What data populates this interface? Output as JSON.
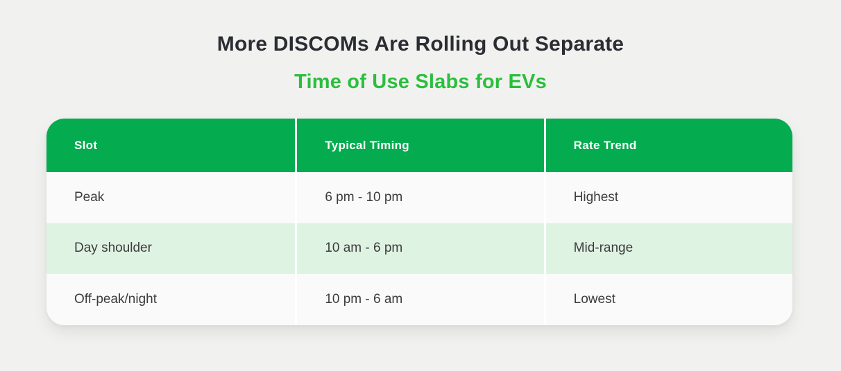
{
  "page": {
    "background": "#F1F1F0"
  },
  "header": {
    "title": "More DISCOMs Are Rolling Out Separate",
    "subtitle": "Time of Use Slabs for EVs",
    "title_color": "#2B2D33",
    "subtitle_color": "#2BBE3D"
  },
  "table": {
    "header_bg": "#04AB4F",
    "header_text_color": "#FFFFFF",
    "row_bg": "#FAFAFA",
    "row_highlight_bg": "#DFF3E2",
    "columns": [
      "Slot",
      "Typical Timing",
      "Rate Trend"
    ],
    "rows": [
      {
        "slot": "Peak",
        "timing": "6 pm - 10 pm",
        "trend": "Highest"
      },
      {
        "slot": "Day shoulder",
        "timing": "10 am - 6 pm",
        "trend": "Mid-range"
      },
      {
        "slot": "Off-peak/night",
        "timing": "10 pm - 6 am",
        "trend": "Lowest"
      }
    ]
  },
  "chart_data": {
    "type": "table",
    "title": "More DISCOMs Are Rolling Out Separate Time of Use Slabs for EVs",
    "columns": [
      "Slot",
      "Typical Timing",
      "Rate Trend"
    ],
    "rows": [
      [
        "Peak",
        "6 pm - 10 pm",
        "Highest"
      ],
      [
        "Day shoulder",
        "10 am - 6 pm",
        "Mid-range"
      ],
      [
        "Off-peak/night",
        "10 pm - 6 am",
        "Lowest"
      ]
    ]
  }
}
